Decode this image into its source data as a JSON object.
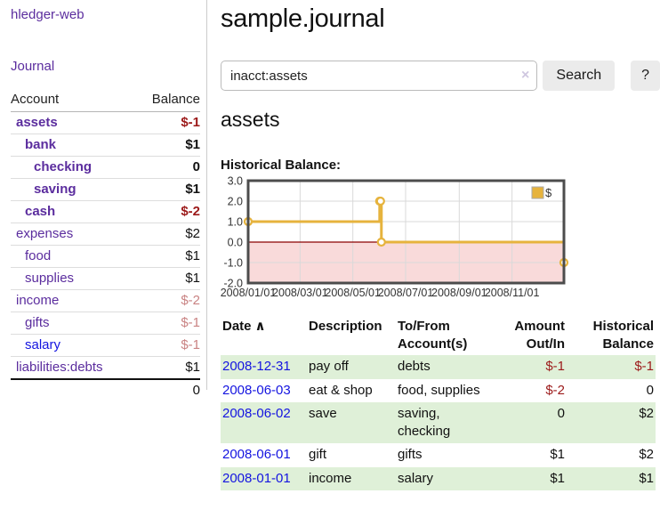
{
  "colors": {
    "link_purple": "#5b2d9e",
    "link_blue": "#1414e0",
    "negative": "#9c1a1a",
    "negative_dim": "#c98383",
    "row_green": "#dff0d8",
    "accent_gold": "#e6b33d",
    "chart_negative_fill": "#f9dada",
    "zero_line_red": "#8b0000",
    "button_grey": "#ebebeb"
  },
  "brand": "hledger-web",
  "nav": {
    "journal": "Journal"
  },
  "sidebar": {
    "header": {
      "account": "Account",
      "balance": "Balance"
    },
    "accounts": [
      {
        "name": "assets",
        "level": 0,
        "bold": true,
        "name_color": "purple",
        "balance": "$-1",
        "balance_tone": "neg"
      },
      {
        "name": "bank",
        "level": 1,
        "bold": true,
        "name_color": "purple",
        "balance": "$1",
        "balance_tone": "plain"
      },
      {
        "name": "checking",
        "level": 2,
        "bold": true,
        "name_color": "purple",
        "balance": "0",
        "balance_tone": "plain"
      },
      {
        "name": "saving",
        "level": 2,
        "bold": true,
        "name_color": "purple",
        "balance": "$1",
        "balance_tone": "plain"
      },
      {
        "name": "cash",
        "level": 1,
        "bold": true,
        "name_color": "purple",
        "balance": "$-2",
        "balance_tone": "neg"
      },
      {
        "name": "expenses",
        "level": 0,
        "bold": false,
        "name_color": "purple",
        "balance": "$2",
        "balance_tone": "plain"
      },
      {
        "name": "food",
        "level": 1,
        "bold": false,
        "name_color": "purple",
        "balance": "$1",
        "balance_tone": "plain"
      },
      {
        "name": "supplies",
        "level": 1,
        "bold": false,
        "name_color": "purple",
        "balance": "$1",
        "balance_tone": "plain"
      },
      {
        "name": "income",
        "level": 0,
        "bold": false,
        "name_color": "purple",
        "balance": "$-2",
        "balance_tone": "dim"
      },
      {
        "name": "gifts",
        "level": 1,
        "bold": false,
        "name_color": "purple",
        "balance": "$-1",
        "balance_tone": "dim"
      },
      {
        "name": "salary",
        "level": 1,
        "bold": false,
        "name_color": "blue",
        "balance": "$-1",
        "balance_tone": "dim"
      },
      {
        "name": "liabilities:debts",
        "level": 0,
        "bold": false,
        "name_color": "purple",
        "balance": "$1",
        "balance_tone": "plain"
      }
    ],
    "total": "0"
  },
  "main": {
    "title": "sample.journal",
    "search": {
      "value": "inacct:assets",
      "clear": "×",
      "submit": "Search",
      "help": "?"
    },
    "account_title": "assets",
    "chart_heading": "Historical Balance:"
  },
  "chart_data": {
    "type": "line",
    "step": true,
    "title": "Historical Balance of assets",
    "series": [
      {
        "name": "$",
        "color": "#e6b33d",
        "points": [
          [
            "2008-01-01",
            1
          ],
          [
            "2008-06-01",
            2
          ],
          [
            "2008-06-02",
            2
          ],
          [
            "2008-06-03",
            0
          ],
          [
            "2008-12-31",
            -1
          ]
        ]
      }
    ],
    "x_range": [
      "2008-01-01",
      "2008-12-31"
    ],
    "x_ticks": [
      "2008/01/01",
      "2008/03/01",
      "2008/05/01",
      "2008/07/01",
      "2008/09/01",
      "2008/11/01"
    ],
    "ylim": [
      -2,
      3
    ],
    "y_ticks": [
      3,
      2,
      1,
      0,
      -1,
      -2
    ],
    "y_tick_labels": [
      "3.0",
      "2.0",
      "1.0",
      "0.0",
      "-1.0",
      "-2.0"
    ],
    "grid": true,
    "legend": {
      "label": "$",
      "position": "top-right"
    },
    "negative_region_fill": "#f9dada",
    "zero_line_color": "#8b0000"
  },
  "register": {
    "columns": [
      {
        "label": "Date",
        "sort": "∧",
        "align": "left"
      },
      {
        "label": "Description",
        "align": "left"
      },
      {
        "label": "To/From Account(s)",
        "align": "left"
      },
      {
        "label": "Amount Out/In",
        "align": "right"
      },
      {
        "label": "Historical Balance",
        "align": "right"
      }
    ],
    "rows": [
      {
        "date": "2008-12-31",
        "description": "pay off",
        "accounts": "debts",
        "amount": "$-1",
        "amount_tone": "neg",
        "balance": "$-1",
        "balance_tone": "neg"
      },
      {
        "date": "2008-06-03",
        "description": "eat & shop",
        "accounts": "food, supplies",
        "amount": "$-2",
        "amount_tone": "neg",
        "balance": "0",
        "balance_tone": "plain"
      },
      {
        "date": "2008-06-02",
        "description": "save",
        "accounts": "saving, checking",
        "amount": "0",
        "amount_tone": "plain",
        "balance": "$2",
        "balance_tone": "plain"
      },
      {
        "date": "2008-06-01",
        "description": "gift",
        "accounts": "gifts",
        "amount": "$1",
        "amount_tone": "plain",
        "balance": "$2",
        "balance_tone": "plain"
      },
      {
        "date": "2008-01-01",
        "description": "income",
        "accounts": "salary",
        "amount": "$1",
        "amount_tone": "plain",
        "balance": "$1",
        "balance_tone": "plain"
      }
    ]
  }
}
